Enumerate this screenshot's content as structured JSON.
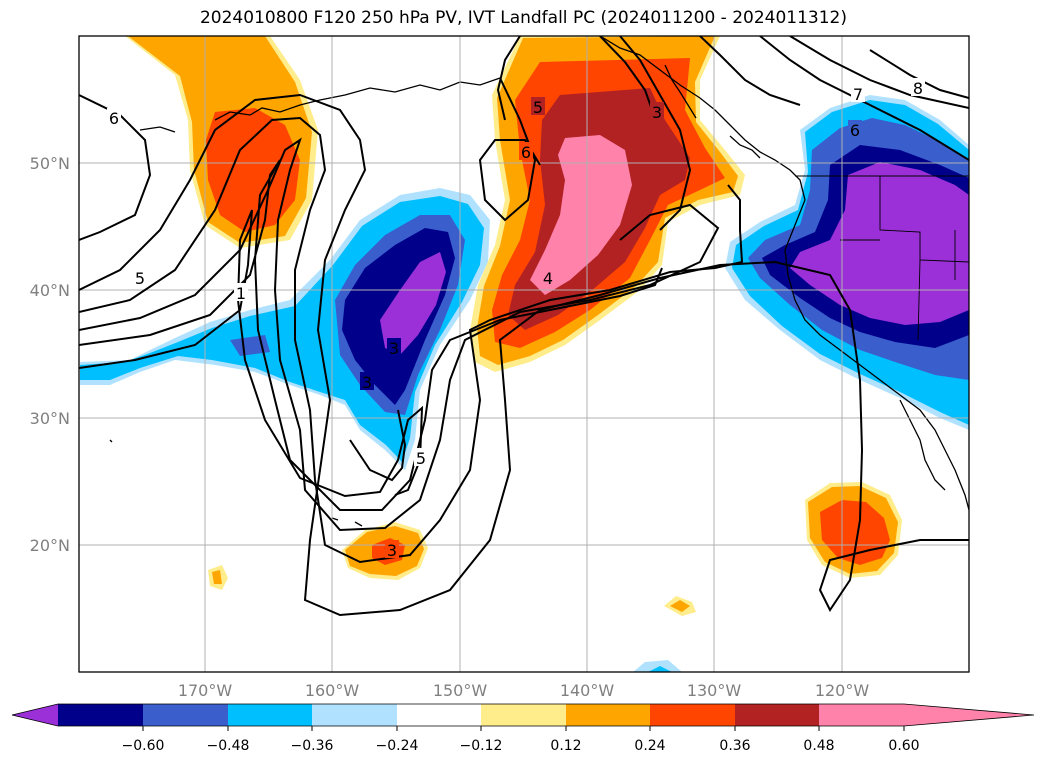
{
  "title": "2024010800 F120 250 hPa PV, IVT Landfall PC (2024011200 - 2024011312)",
  "map": {
    "lat_labels": [
      "50°N",
      "40°N",
      "30°N",
      "20°N"
    ],
    "lon_labels": [
      "170°W",
      "160°W",
      "150°W",
      "140°W",
      "130°W",
      "120°W"
    ],
    "contour_labels": [
      "6",
      "5",
      "1",
      "5",
      "6",
      "3",
      "7",
      "8",
      "6",
      "4",
      "3",
      "5",
      "3",
      "3"
    ]
  },
  "colorbar": {
    "colors": [
      "#9b30d9",
      "#00008b",
      "#3a5fcd",
      "#00bfff",
      "#b0e2ff",
      "#ffffff",
      "#ffec8b",
      "#ffa500",
      "#ff4500",
      "#b22222",
      "#ff82ab"
    ],
    "tick_labels": [
      "−0.60",
      "−0.48",
      "−0.36",
      "−0.24",
      "−0.12",
      "0.12",
      "0.24",
      "0.36",
      "0.48",
      "0.60"
    ]
  }
}
